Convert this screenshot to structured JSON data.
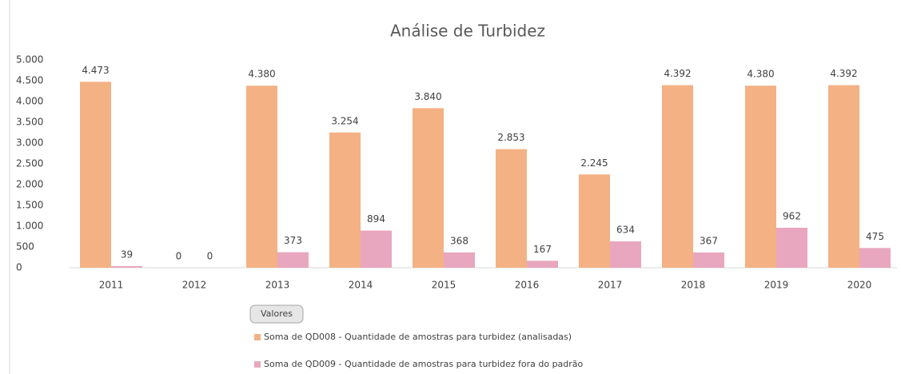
{
  "chart_data": {
    "type": "bar",
    "title": "Análise de Turbidez",
    "categories": [
      "2011",
      "2012",
      "2013",
      "2014",
      "2015",
      "2016",
      "2017",
      "2018",
      "2019",
      "2020"
    ],
    "series": [
      {
        "name": "Soma de QD008 - Quantidade de amostras para turbidez (analisadas)",
        "color": "#f4b183",
        "values": [
          4473,
          0,
          4380,
          3254,
          3840,
          2853,
          2245,
          4392,
          4380,
          4392
        ],
        "value_labels": [
          "4.473",
          "0",
          "4.380",
          "3.254",
          "3.840",
          "2.853",
          "2.245",
          "4.392",
          "4.380",
          "4.392"
        ]
      },
      {
        "name": "Soma de QD009 - Quantidade de amostras para turbidez fora do padrão",
        "color": "#e8a7bf",
        "values": [
          39,
          0,
          373,
          894,
          368,
          167,
          634,
          367,
          962,
          475
        ],
        "value_labels": [
          "39",
          "0",
          "373",
          "894",
          "368",
          "167",
          "634",
          "367",
          "962",
          "475"
        ]
      }
    ],
    "legend_title": "Valores",
    "ylim": [
      0,
      5000
    ],
    "yticks": [
      0,
      500,
      {
        "value": 1000,
        "label": "1.000"
      },
      {
        "value": 1500,
        "label": "1.500"
      },
      {
        "value": 2000,
        "label": "2.000"
      },
      {
        "value": 2500,
        "label": "2.500"
      },
      {
        "value": 3000,
        "label": "3.000"
      },
      {
        "value": 3500,
        "label": "3.500"
      },
      {
        "value": 4000,
        "label": "4.000"
      },
      {
        "value": 4500,
        "label": "4.500"
      },
      {
        "value": 5000,
        "label": "5.000"
      }
    ],
    "grid": false
  }
}
